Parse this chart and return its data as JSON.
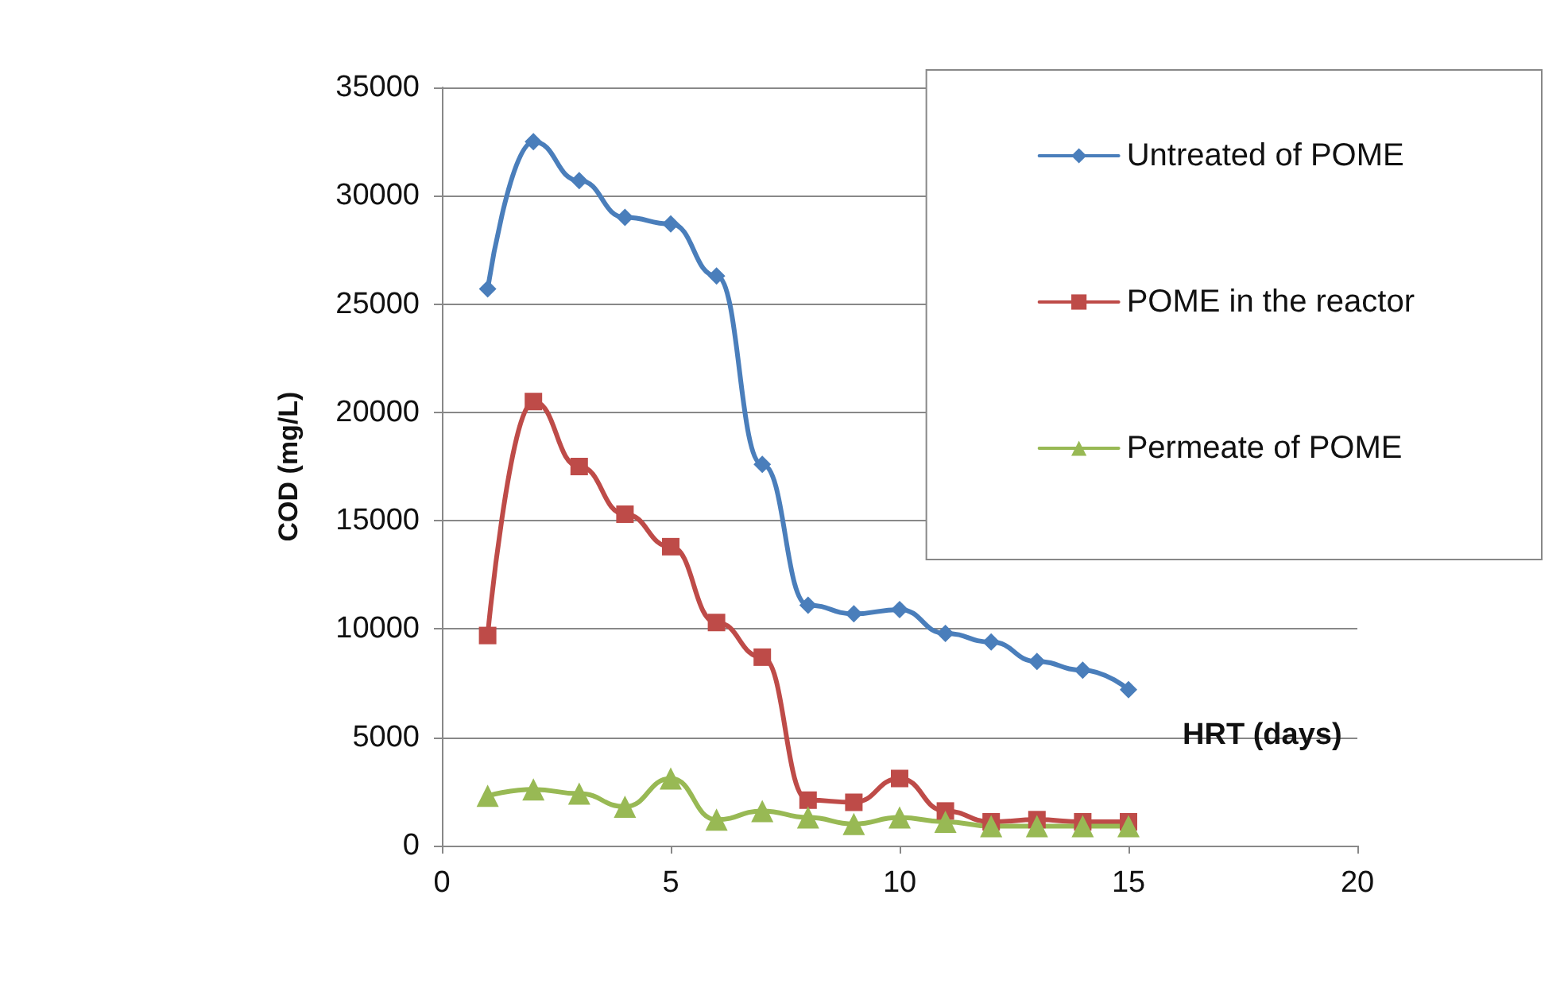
{
  "chart_data": {
    "type": "line",
    "xlabel": "HRT (days)",
    "ylabel": "COD (mg/L)",
    "x": [
      1,
      2,
      3,
      4,
      5,
      6,
      7,
      8,
      9,
      10,
      11,
      12,
      13,
      14,
      15
    ],
    "series": [
      {
        "name": "Untreated of POME",
        "color": "#4a7ebb",
        "marker": "diamond",
        "values": [
          25700,
          32500,
          30700,
          29000,
          28700,
          26300,
          17600,
          11100,
          10700,
          10900,
          9800,
          9400,
          8500,
          8100,
          7200
        ]
      },
      {
        "name": "POME in the reactor",
        "color": "#be4b48",
        "marker": "square",
        "values": [
          9700,
          20500,
          17500,
          15300,
          13800,
          10300,
          8700,
          2100,
          2000,
          3100,
          1600,
          1100,
          1200,
          1100,
          1100
        ]
      },
      {
        "name": "Permeate of POME",
        "color": "#98b954",
        "marker": "triangle",
        "values": [
          2300,
          2600,
          2400,
          1800,
          3100,
          1200,
          1600,
          1300,
          1000,
          1300,
          1100,
          900,
          900,
          900,
          900
        ]
      }
    ],
    "xlim": [
      0,
      20
    ],
    "xticks": [
      0,
      5,
      10,
      15,
      20
    ],
    "ylim": [
      0,
      35000
    ],
    "yticks": [
      0,
      5000,
      10000,
      15000,
      20000,
      25000,
      30000,
      35000
    ],
    "grid": "y",
    "legend": "top right",
    "line_style": "solid"
  }
}
